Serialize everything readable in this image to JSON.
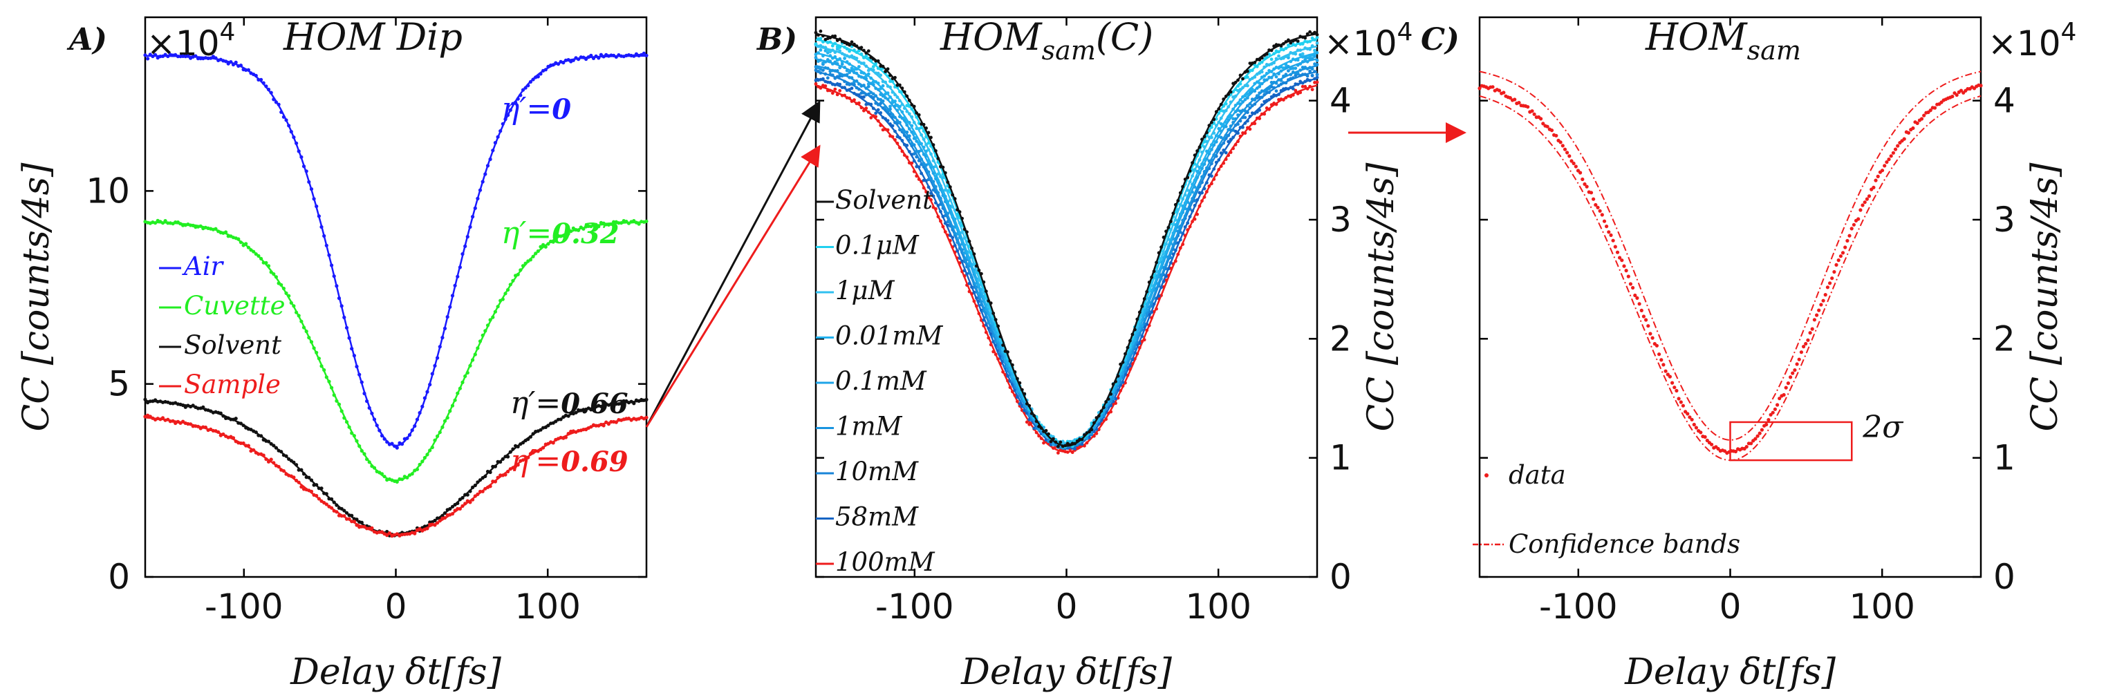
{
  "colors": {
    "air": "#1a1aff",
    "cuvette": "#22ee22",
    "solvent": "#111111",
    "sample": "#ee1c1c",
    "c1": "#20d0f0",
    "c2": "#30c0f0",
    "c3": "#20b0ee",
    "c4": "#1ea4e8",
    "c5": "#1994e0",
    "c6": "#1884d8",
    "c7": "#1464c4",
    "c8": "#0e3fa0"
  },
  "chart_data": [
    {
      "panel": "A",
      "type": "line",
      "title": "HOM Dip",
      "panel_label": "A)",
      "xlabel": "Delay δt[fs]",
      "ylabel": "CC [counts/4s]",
      "y_scale_label": "×10",
      "y_scale_exp": "4",
      "xlim": [
        -165,
        165
      ],
      "ylim": [
        0,
        14.5
      ],
      "xticks": [
        -100,
        0,
        100
      ],
      "xtick_labels": [
        "-100",
        "0",
        "100"
      ],
      "yticks": [
        0,
        5,
        10
      ],
      "ytick_labels": [
        "0",
        "5",
        "10"
      ],
      "legend": [
        {
          "label": "Air",
          "color_key": "air"
        },
        {
          "label": "Cuvette",
          "color_key": "cuvette"
        },
        {
          "label": "Solvent",
          "color_key": "solvent"
        },
        {
          "label": "Sample",
          "color_key": "sample"
        }
      ],
      "series": [
        {
          "name": "Air",
          "color_key": "air",
          "baseline": 13.5,
          "min": 3.4,
          "sigma": 38,
          "eta_label": "η′=",
          "eta_value": "0"
        },
        {
          "name": "Cuvette",
          "color_key": "cuvette",
          "baseline": 9.2,
          "min": 2.5,
          "sigma": 45,
          "eta_label": "η′=",
          "eta_value": "0.32"
        },
        {
          "name": "Solvent",
          "color_key": "solvent",
          "baseline": 4.6,
          "min": 1.1,
          "sigma": 55,
          "eta_label": "η′=",
          "eta_value": "0.66"
        },
        {
          "name": "Sample",
          "color_key": "sample",
          "baseline": 4.2,
          "min": 1.1,
          "sigma": 60,
          "eta_label": "η′=",
          "eta_value": "0.69"
        }
      ]
    },
    {
      "panel": "B",
      "type": "line",
      "title": "HOMsam(C)",
      "title_main": "HOM",
      "title_sub": "sam",
      "title_arg": "(C)",
      "panel_label": "B)",
      "xlabel": "Delay δt[fs]",
      "ylabel": "CC [counts/4s]",
      "y_scale_label": "×10",
      "y_scale_exp": "4",
      "xlim": [
        -165,
        165
      ],
      "ylim": [
        0,
        4.7
      ],
      "xticks": [
        -100,
        0,
        100
      ],
      "xtick_labels": [
        "-100",
        "0",
        "100"
      ],
      "yticks": [
        0,
        1,
        2,
        3,
        4
      ],
      "ytick_labels": [
        "0",
        "1",
        "2",
        "3",
        "4"
      ],
      "legend": [
        {
          "label": "Solvent",
          "color_key": "solvent"
        },
        {
          "label": "0.1μM",
          "color_key": "c1"
        },
        {
          "label": "1μM",
          "color_key": "c2"
        },
        {
          "label": "0.01mM",
          "color_key": "c3"
        },
        {
          "label": "0.1mM",
          "color_key": "c4"
        },
        {
          "label": "1mM",
          "color_key": "c5"
        },
        {
          "label": "10mM",
          "color_key": "c6"
        },
        {
          "label": "58mM",
          "color_key": "c7"
        },
        {
          "label": "100mM",
          "color_key": "sample"
        }
      ],
      "series": [
        {
          "name": "Solvent",
          "color_key": "solvent",
          "baseline": 4.6,
          "min": 1.1,
          "sigma": 55
        },
        {
          "name": "0.1μM",
          "color_key": "c1",
          "baseline": 4.55,
          "min": 1.1,
          "sigma": 55
        },
        {
          "name": "1μM",
          "color_key": "c2",
          "baseline": 4.5,
          "min": 1.12,
          "sigma": 56
        },
        {
          "name": "0.01mM",
          "color_key": "c3",
          "baseline": 4.45,
          "min": 1.12,
          "sigma": 57
        },
        {
          "name": "0.1mM",
          "color_key": "c4",
          "baseline": 4.4,
          "min": 1.1,
          "sigma": 57
        },
        {
          "name": "1mM",
          "color_key": "c5",
          "baseline": 4.35,
          "min": 1.1,
          "sigma": 58
        },
        {
          "name": "10mM",
          "color_key": "c6",
          "baseline": 4.3,
          "min": 1.1,
          "sigma": 58
        },
        {
          "name": "58mM",
          "color_key": "c7",
          "baseline": 4.25,
          "min": 1.08,
          "sigma": 59
        },
        {
          "name": "100mM",
          "color_key": "sample",
          "baseline": 4.2,
          "min": 1.05,
          "sigma": 60
        }
      ]
    },
    {
      "panel": "C",
      "type": "line",
      "title": "HOMsam",
      "title_main": "HOM",
      "title_sub": "sam",
      "panel_label": "C)",
      "xlabel": "Delay δt[fs]",
      "ylabel": "CC [counts/4s]",
      "y_scale_label": "×10",
      "y_scale_exp": "4",
      "xlim": [
        -165,
        165
      ],
      "ylim": [
        0,
        4.7
      ],
      "xticks": [
        -100,
        0,
        100
      ],
      "xtick_labels": [
        "-100",
        "0",
        "100"
      ],
      "yticks": [
        0,
        1,
        2,
        3,
        4
      ],
      "ytick_labels": [
        "0",
        "1",
        "2",
        "3",
        "4"
      ],
      "legend": [
        {
          "label": "data",
          "color_key": "sample",
          "style": "dots"
        },
        {
          "label": "Confidence bands",
          "color_key": "sample",
          "style": "dashdot"
        }
      ],
      "series": [
        {
          "name": "data",
          "color_key": "sample",
          "baseline": 4.2,
          "min": 1.05,
          "sigma": 60
        }
      ],
      "confidence_band": {
        "upper_baseline": 4.3,
        "upper_min": 1.15,
        "upper_sigma": 58,
        "lower_baseline": 4.12,
        "lower_min": 0.98,
        "lower_sigma": 61
      },
      "annotation": "2σ"
    }
  ]
}
